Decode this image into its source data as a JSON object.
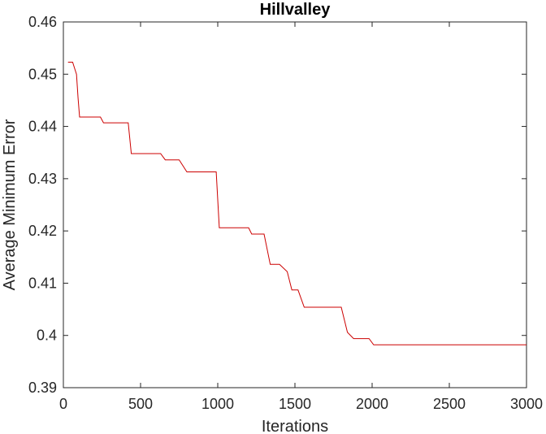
{
  "chart_data": {
    "type": "line",
    "title": "Hillvalley",
    "xlabel": "Iterations",
    "ylabel": "Average Minimum Error",
    "xlim": [
      0,
      3000
    ],
    "ylim": [
      0.39,
      0.46
    ],
    "xticks": [
      0,
      500,
      1000,
      1500,
      2000,
      2500,
      3000
    ],
    "xtick_labels": [
      "0",
      "500",
      "1000",
      "1500",
      "2000",
      "2500",
      "3000"
    ],
    "yticks": [
      0.39,
      0.4,
      0.41,
      0.42,
      0.43,
      0.44,
      0.45,
      0.46
    ],
    "ytick_labels": [
      "0.39",
      "0.4",
      "0.41",
      "0.42",
      "0.43",
      "0.44",
      "0.45",
      "0.46"
    ],
    "grid": false,
    "box": true,
    "colors": {
      "line": "#cc0000",
      "axes": "#262626"
    },
    "series": [
      {
        "x": [
          30,
          60,
          85,
          95,
          105,
          120,
          240,
          260,
          420,
          440,
          630,
          660,
          750,
          800,
          990,
          1010,
          1200,
          1220,
          1300,
          1340,
          1400,
          1450,
          1480,
          1520,
          1560,
          1800,
          1840,
          1880,
          1980,
          2010,
          3000
        ],
        "y": [
          0.4523,
          0.4523,
          0.45,
          0.4455,
          0.4418,
          0.4418,
          0.4418,
          0.4407,
          0.4407,
          0.4348,
          0.4348,
          0.4336,
          0.4336,
          0.4313,
          0.4313,
          0.4206,
          0.4206,
          0.4194,
          0.4194,
          0.4136,
          0.4136,
          0.4122,
          0.4087,
          0.4087,
          0.4054,
          0.4054,
          0.4006,
          0.3994,
          0.3994,
          0.3982,
          0.3982
        ]
      }
    ]
  }
}
